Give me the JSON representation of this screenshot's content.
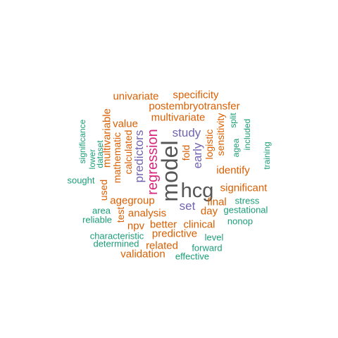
{
  "colors": {
    "dark": "#555555",
    "magenta": "#d6267d",
    "purple": "#7264b0",
    "orange": "#d95f02",
    "teal": "#1b9e77"
  },
  "words": [
    {
      "text": "model",
      "color": "dark"
    },
    {
      "text": "hcg",
      "color": "dark"
    },
    {
      "text": "regression",
      "color": "magenta"
    },
    {
      "text": "study",
      "color": "purple"
    },
    {
      "text": "predictors",
      "color": "purple"
    },
    {
      "text": "early",
      "color": "purple"
    },
    {
      "text": "set",
      "color": "purple"
    },
    {
      "text": "specificity",
      "color": "orange"
    },
    {
      "text": "univariate",
      "color": "orange"
    },
    {
      "text": "postembryotransfer",
      "color": "orange"
    },
    {
      "text": "multivariate",
      "color": "orange"
    },
    {
      "text": "value",
      "color": "orange"
    },
    {
      "text": "multivariable",
      "color": "orange"
    },
    {
      "text": "mathematic",
      "color": "orange"
    },
    {
      "text": "calculated",
      "color": "orange"
    },
    {
      "text": "fold",
      "color": "orange"
    },
    {
      "text": "logistic",
      "color": "orange"
    },
    {
      "text": "sensitivity",
      "color": "orange"
    },
    {
      "text": "identify",
      "color": "orange"
    },
    {
      "text": "significant",
      "color": "orange"
    },
    {
      "text": "final",
      "color": "orange"
    },
    {
      "text": "day",
      "color": "orange"
    },
    {
      "text": "agegroup",
      "color": "orange"
    },
    {
      "text": "used",
      "color": "orange"
    },
    {
      "text": "test",
      "color": "orange"
    },
    {
      "text": "analysis",
      "color": "orange"
    },
    {
      "text": "npv",
      "color": "orange"
    },
    {
      "text": "better",
      "color": "orange"
    },
    {
      "text": "clinical",
      "color": "orange"
    },
    {
      "text": "predictive",
      "color": "orange"
    },
    {
      "text": "related",
      "color": "orange"
    },
    {
      "text": "validation",
      "color": "orange"
    },
    {
      "text": "significance",
      "color": "teal"
    },
    {
      "text": "lower",
      "color": "teal"
    },
    {
      "text": "dataset",
      "color": "teal"
    },
    {
      "text": "sought",
      "color": "teal"
    },
    {
      "text": "split",
      "color": "teal"
    },
    {
      "text": "agea",
      "color": "teal"
    },
    {
      "text": "included",
      "color": "teal"
    },
    {
      "text": "training",
      "color": "teal"
    },
    {
      "text": "stress",
      "color": "teal"
    },
    {
      "text": "gestational",
      "color": "teal"
    },
    {
      "text": "area",
      "color": "teal"
    },
    {
      "text": "reliable",
      "color": "teal"
    },
    {
      "text": "nonop",
      "color": "teal"
    },
    {
      "text": "characteristic",
      "color": "teal"
    },
    {
      "text": "level",
      "color": "teal"
    },
    {
      "text": "determined",
      "color": "teal"
    },
    {
      "text": "forward",
      "color": "teal"
    },
    {
      "text": "effective",
      "color": "teal"
    }
  ]
}
